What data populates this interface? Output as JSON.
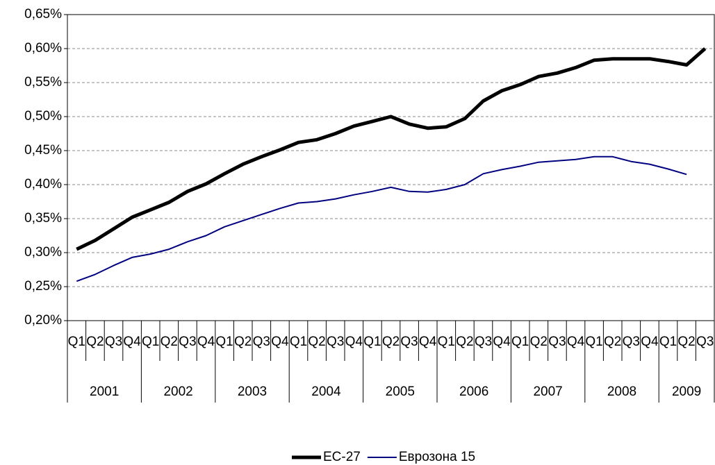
{
  "chart_data": {
    "type": "line",
    "categories": [
      "Q1",
      "Q2",
      "Q3",
      "Q4",
      "Q1",
      "Q2",
      "Q3",
      "Q4",
      "Q1",
      "Q2",
      "Q3",
      "Q4",
      "Q1",
      "Q2",
      "Q3",
      "Q4",
      "Q1",
      "Q2",
      "Q3",
      "Q4",
      "Q1",
      "Q2",
      "Q3",
      "Q4",
      "Q1",
      "Q2",
      "Q3",
      "Q4",
      "Q1",
      "Q2",
      "Q3",
      "Q4",
      "Q1",
      "Q2",
      "Q3"
    ],
    "year_groups": [
      "2001",
      "2002",
      "2003",
      "2004",
      "2005",
      "2006",
      "2007",
      "2008",
      "2009"
    ],
    "series": [
      {
        "name": "ЕС-27",
        "color": "#000000",
        "values": [
          0.305,
          0.318,
          0.335,
          0.352,
          0.363,
          0.374,
          0.39,
          0.401,
          0.416,
          0.43,
          0.441,
          0.451,
          0.462,
          0.466,
          0.475,
          0.486,
          0.493,
          0.5,
          0.489,
          0.483,
          0.485,
          0.497,
          0.523,
          0.538,
          0.547,
          0.559,
          0.564,
          0.572,
          0.583,
          0.585,
          0.585,
          0.585,
          0.581,
          0.576,
          0.6
        ]
      },
      {
        "name": "Еврозона 15",
        "color": "#000080",
        "values": [
          0.258,
          0.268,
          0.281,
          0.293,
          0.298,
          0.305,
          0.316,
          0.325,
          0.338,
          0.347,
          0.356,
          0.365,
          0.373,
          0.375,
          0.379,
          0.385,
          0.39,
          0.396,
          0.39,
          0.389,
          0.393,
          0.4,
          0.416,
          0.422,
          0.427,
          0.433,
          0.435,
          0.437,
          0.441,
          0.441,
          0.434,
          0.43,
          0.423,
          0.415,
          null
        ]
      }
    ],
    "ylim": [
      0.2,
      0.65
    ],
    "yticks": [
      {
        "value": 0.2,
        "label": "0,20%"
      },
      {
        "value": 0.25,
        "label": "0,25%"
      },
      {
        "value": 0.3,
        "label": "0,30%"
      },
      {
        "value": 0.35,
        "label": "0,35%"
      },
      {
        "value": 0.4,
        "label": "0,40%"
      },
      {
        "value": 0.45,
        "label": "0,45%"
      },
      {
        "value": 0.5,
        "label": "0,50%"
      },
      {
        "value": 0.55,
        "label": "0,55%"
      },
      {
        "value": 0.6,
        "label": "0,60%"
      },
      {
        "value": 0.65,
        "label": "0,65%"
      }
    ],
    "grid": true,
    "legend": "bottom"
  }
}
